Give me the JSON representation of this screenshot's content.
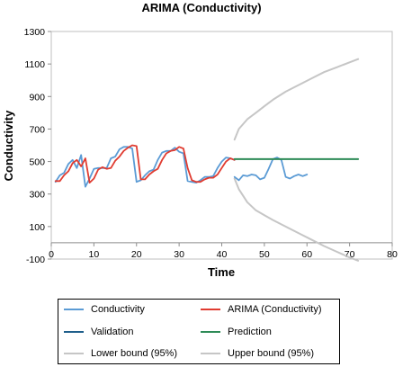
{
  "chart_data": {
    "type": "line",
    "title": "ARIMA (Conductivity)",
    "xlabel": "Time",
    "ylabel": "Conductivity",
    "xlim": [
      0,
      80
    ],
    "ylim": [
      -100,
      1300
    ],
    "xticks": [
      0,
      10,
      20,
      30,
      40,
      50,
      60,
      70,
      80
    ],
    "yticks": [
      -100,
      100,
      300,
      500,
      700,
      900,
      1100,
      1300
    ],
    "grid": false,
    "legend_position": "bottom",
    "series": [
      {
        "name": "Conductivity",
        "color": "#5b9bd5",
        "x": [
          1,
          2,
          3,
          4,
          5,
          6,
          7,
          8,
          9,
          10,
          11,
          12,
          13,
          14,
          15,
          16,
          17,
          18,
          19,
          20,
          21,
          22,
          23,
          24,
          25,
          26,
          27,
          28,
          29,
          30,
          31,
          32,
          33,
          34,
          35,
          36,
          37,
          38,
          39,
          40,
          41,
          42,
          43
        ],
        "y": [
          375,
          415,
          430,
          485,
          510,
          460,
          540,
          345,
          395,
          455,
          460,
          460,
          460,
          520,
          530,
          575,
          590,
          590,
          580,
          375,
          385,
          415,
          440,
          450,
          510,
          555,
          565,
          565,
          585,
          560,
          550,
          380,
          375,
          370,
          385,
          405,
          405,
          410,
          460,
          500,
          525,
          520,
          510
        ]
      },
      {
        "name": "ARIMA (Conductivity)",
        "color": "#e03c31",
        "x": [
          1,
          2,
          3,
          4,
          5,
          6,
          7,
          8,
          9,
          10,
          11,
          12,
          13,
          14,
          15,
          16,
          17,
          18,
          19,
          20,
          21,
          22,
          23,
          24,
          25,
          26,
          27,
          28,
          29,
          30,
          31,
          32,
          33,
          34,
          35,
          36,
          37,
          38,
          39,
          40,
          41,
          42,
          43
        ],
        "y": [
          380,
          380,
          415,
          440,
          490,
          510,
          470,
          520,
          370,
          395,
          450,
          465,
          455,
          460,
          505,
          530,
          565,
          585,
          600,
          595,
          390,
          390,
          420,
          440,
          455,
          510,
          550,
          565,
          570,
          590,
          580,
          460,
          385,
          375,
          375,
          390,
          400,
          400,
          420,
          460,
          500,
          520,
          510
        ]
      },
      {
        "name": "Validation",
        "color": "#5b9bd5",
        "x": [
          43,
          44,
          45,
          46,
          47,
          48,
          49,
          50,
          51,
          52,
          53,
          54,
          55,
          56,
          57,
          58,
          59,
          60
        ],
        "y": [
          405,
          385,
          415,
          410,
          420,
          415,
          390,
          400,
          455,
          515,
          525,
          510,
          405,
          395,
          410,
          420,
          410,
          420
        ]
      },
      {
        "name": "Prediction",
        "color": "#2e8b57",
        "x": [
          43,
          72
        ],
        "y": [
          515,
          515
        ]
      },
      {
        "name": "Lower bound (95%)",
        "color": "#c6c6c6",
        "x": [
          43,
          44,
          46,
          48,
          50,
          52,
          55,
          58,
          61,
          64,
          67,
          70,
          72
        ],
        "y": [
          395,
          330,
          250,
          200,
          170,
          140,
          100,
          60,
          20,
          -20,
          -55,
          -90,
          -110
        ]
      },
      {
        "name": "Upper bound (95%)",
        "color": "#c6c6c6",
        "x": [
          43,
          44,
          46,
          48,
          50,
          52,
          55,
          58,
          61,
          64,
          67,
          70,
          72
        ],
        "y": [
          635,
          700,
          760,
          800,
          840,
          880,
          930,
          970,
          1010,
          1050,
          1080,
          1110,
          1130
        ]
      }
    ]
  }
}
